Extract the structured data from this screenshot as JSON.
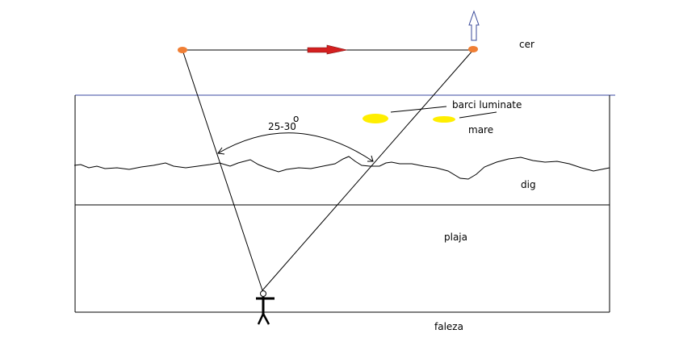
{
  "labels": {
    "sky": "cer",
    "boats": "barci luminate",
    "sea": "mare",
    "angle": "25-30",
    "degree": "o",
    "dike": "dig",
    "beach": "plaja",
    "promenade": "faleza"
  },
  "colors": {
    "light_source": "#f07f35",
    "motion_arrow": "#d42020",
    "up_arrow": "#3a4a9a",
    "horizon": "#3a4aa0",
    "boats": "#ffee00"
  }
}
